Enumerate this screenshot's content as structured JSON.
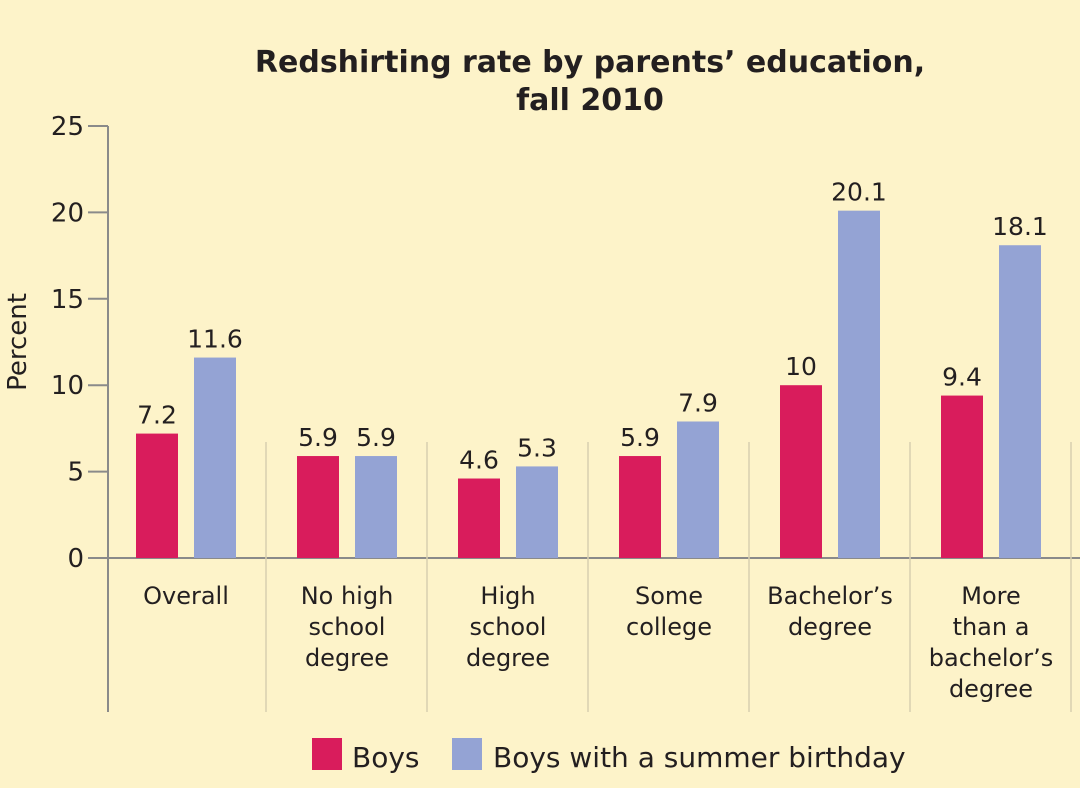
{
  "chart_data": {
    "type": "bar",
    "title": [
      "Redshirting rate by parents’ education,",
      "fall 2010"
    ],
    "xlabel": "",
    "ylabel": "Percent",
    "ylim": [
      0,
      25
    ],
    "yticks": [
      0,
      5,
      10,
      15,
      20,
      25
    ],
    "grid": false,
    "legend_position": "bottom",
    "categories": [
      [
        "Overall"
      ],
      [
        "No high",
        "school",
        "degree"
      ],
      [
        "High",
        "school",
        "degree"
      ],
      [
        "Some",
        "college"
      ],
      [
        "Bachelor’s",
        "degree"
      ],
      [
        "More",
        "than a",
        "bachelor’s",
        "degree"
      ]
    ],
    "series": [
      {
        "name": "Boys",
        "color": "#d91c5c",
        "values": [
          7.2,
          5.9,
          4.6,
          5.9,
          10,
          9.4
        ],
        "labels": [
          "7.2",
          "5.9",
          "4.6",
          "5.9",
          "10",
          "9.4"
        ]
      },
      {
        "name": "Boys with a summer birthday",
        "color": "#94a3d4",
        "values": [
          11.6,
          5.9,
          5.3,
          7.9,
          20.1,
          18.1
        ],
        "labels": [
          "11.6",
          "5.9",
          "5.3",
          "7.9",
          "20.1",
          "18.1"
        ]
      }
    ]
  },
  "colors": {
    "background": "#fdf3c9",
    "axis": "#8a8a8a",
    "separator": "#d8d0b0",
    "text": "#231f20"
  }
}
